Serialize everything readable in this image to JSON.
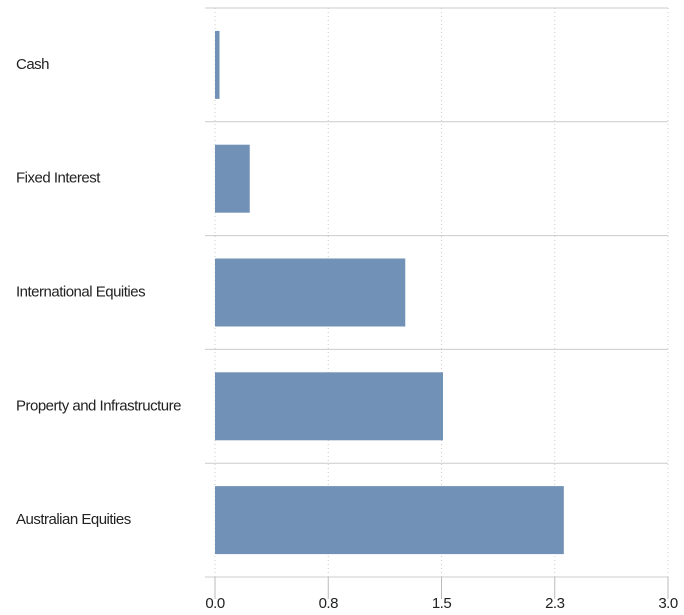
{
  "chart_data": {
    "type": "hbar",
    "categories": [
      "Cash",
      "Fixed Interest",
      "International Equities",
      "Property and Infrastructure",
      "Australian Equities"
    ],
    "values": [
      0.03,
      0.23,
      1.26,
      1.51,
      2.31
    ],
    "color": "#7291b7",
    "xlim": [
      0,
      3
    ],
    "xticks": [
      {
        "value": 0,
        "label": "0.0"
      },
      {
        "value": 0.75,
        "label": "0.8"
      },
      {
        "value": 1.5,
        "label": "1.5"
      },
      {
        "value": 2.25,
        "label": "2.3"
      },
      {
        "value": 3,
        "label": "3.0"
      }
    ],
    "grid": true
  }
}
